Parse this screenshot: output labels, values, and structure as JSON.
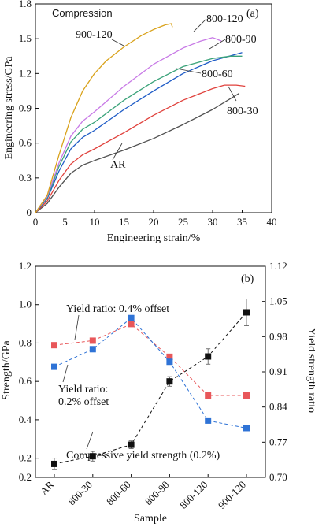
{
  "chart_data": [
    {
      "type": "line",
      "panel_label": "(a)",
      "annotation": "Compression",
      "xlabel": "Engineering strain/%",
      "ylabel": "Engineering stress/GPa",
      "xlim": [
        0,
        40
      ],
      "ylim": [
        0,
        1.8
      ],
      "xticks": [
        0,
        5,
        10,
        15,
        20,
        25,
        30,
        35,
        40
      ],
      "yticks": [
        0,
        0.3,
        0.6,
        0.9,
        1.2,
        1.5,
        1.8
      ],
      "xtick_labels": [
        "0",
        "5",
        "10",
        "15",
        "20",
        "25",
        "30",
        "35",
        "40"
      ],
      "ytick_labels": [
        "0",
        "0.3",
        "0.6",
        "0.9",
        "1.2",
        "1.5",
        "1.8"
      ],
      "series": [
        {
          "name": "AR",
          "color": "#505050",
          "x": [
            0,
            2,
            4,
            6,
            8,
            10,
            15,
            20,
            25,
            30,
            34.5
          ],
          "y": [
            0,
            0.08,
            0.22,
            0.34,
            0.41,
            0.45,
            0.54,
            0.64,
            0.76,
            0.89,
            1.03
          ]
        },
        {
          "name": "800-30",
          "color": "#e0413c",
          "x": [
            0,
            2,
            4,
            6,
            8,
            10,
            15,
            20,
            25,
            30,
            32,
            34,
            35.5
          ],
          "y": [
            0,
            0.1,
            0.28,
            0.42,
            0.5,
            0.55,
            0.69,
            0.84,
            0.97,
            1.07,
            1.1,
            1.1,
            1.09
          ]
        },
        {
          "name": "800-60",
          "color": "#1e5bc6",
          "x": [
            0,
            2,
            4,
            6,
            8,
            10,
            15,
            20,
            25,
            30,
            35
          ],
          "y": [
            0,
            0.12,
            0.36,
            0.55,
            0.65,
            0.71,
            0.89,
            1.05,
            1.2,
            1.31,
            1.38
          ]
        },
        {
          "name": "800-90",
          "color": "#3ba37a",
          "x": [
            0,
            2,
            4,
            6,
            8,
            10,
            15,
            20,
            25,
            30,
            33,
            35
          ],
          "y": [
            0,
            0.13,
            0.4,
            0.61,
            0.72,
            0.78,
            0.97,
            1.13,
            1.26,
            1.33,
            1.35,
            1.35
          ]
        },
        {
          "name": "800-120",
          "color": "#c87ae6",
          "x": [
            0,
            2,
            4,
            6,
            8,
            10,
            15,
            20,
            25,
            28,
            30,
            31.5
          ],
          "y": [
            0,
            0.14,
            0.43,
            0.66,
            0.79,
            0.87,
            1.09,
            1.28,
            1.42,
            1.48,
            1.51,
            1.48
          ]
        },
        {
          "name": "900-120",
          "color": "#d9a21b",
          "x": [
            0,
            2,
            4,
            6,
            8,
            10,
            12,
            15,
            18,
            20,
            22,
            23,
            23.2
          ],
          "y": [
            0,
            0.15,
            0.5,
            0.82,
            1.05,
            1.2,
            1.31,
            1.43,
            1.53,
            1.58,
            1.62,
            1.63,
            1.6
          ]
        }
      ],
      "labels": [
        "AR",
        "800-30",
        "800-60",
        "800-90",
        "800-120",
        "900-120"
      ]
    },
    {
      "type": "line",
      "panel_label": "(b)",
      "xlabel": "Sample",
      "ylabel": "Strength/GPa",
      "ylabel_right": "Yield strength ratio",
      "categories": [
        "AR",
        "800-30",
        "800-60",
        "800-90",
        "800-120",
        "900-120"
      ],
      "ylim": [
        0.1,
        1.2
      ],
      "ylim_right": [
        0.7,
        1.12
      ],
      "yticks": [
        0.2,
        0.4,
        0.6,
        0.8,
        1.0,
        1.2
      ],
      "ytick_labels": [
        "0.2",
        "0.4",
        "0.6",
        "0.8",
        "1.0",
        "1.2"
      ],
      "yticks_right": [
        0.7,
        0.77,
        0.84,
        0.91,
        0.98,
        1.05,
        1.12
      ],
      "ytick_labels_right": [
        "0.70",
        "0.77",
        "0.84",
        "0.91",
        "0.98",
        "1.05",
        "1.12"
      ],
      "ytick_label_extra": "0.2",
      "series": [
        {
          "name": "Compressive yield strength (0.2%)",
          "axis": "left",
          "color": "#111111",
          "marker": "square",
          "values": [
            0.17,
            0.21,
            0.27,
            0.6,
            0.73,
            0.96
          ],
          "errors": [
            0.03,
            0.025,
            0.02,
            0.025,
            0.04,
            0.07
          ]
        },
        {
          "name": "Yield ratio: 0.4% offset",
          "axis": "right",
          "color": "#e8575a",
          "marker": "square",
          "values": [
            0.963,
            0.972,
            1.005,
            0.94,
            0.863,
            0.863
          ]
        },
        {
          "name": "Yield ratio: 0.2% offset",
          "axis": "right",
          "color": "#2f73d6",
          "marker": "square",
          "values": [
            0.92,
            0.955,
            1.017,
            0.93,
            0.813,
            0.798
          ]
        }
      ],
      "annotations": {
        "ratio04_label": "Yield ratio: 0.4% offset",
        "ratio02_line1": "Yield ratio:",
        "ratio02_line2": "0.2% offset",
        "strength_label": "Compressive yield strength (0.2%)"
      }
    }
  ]
}
